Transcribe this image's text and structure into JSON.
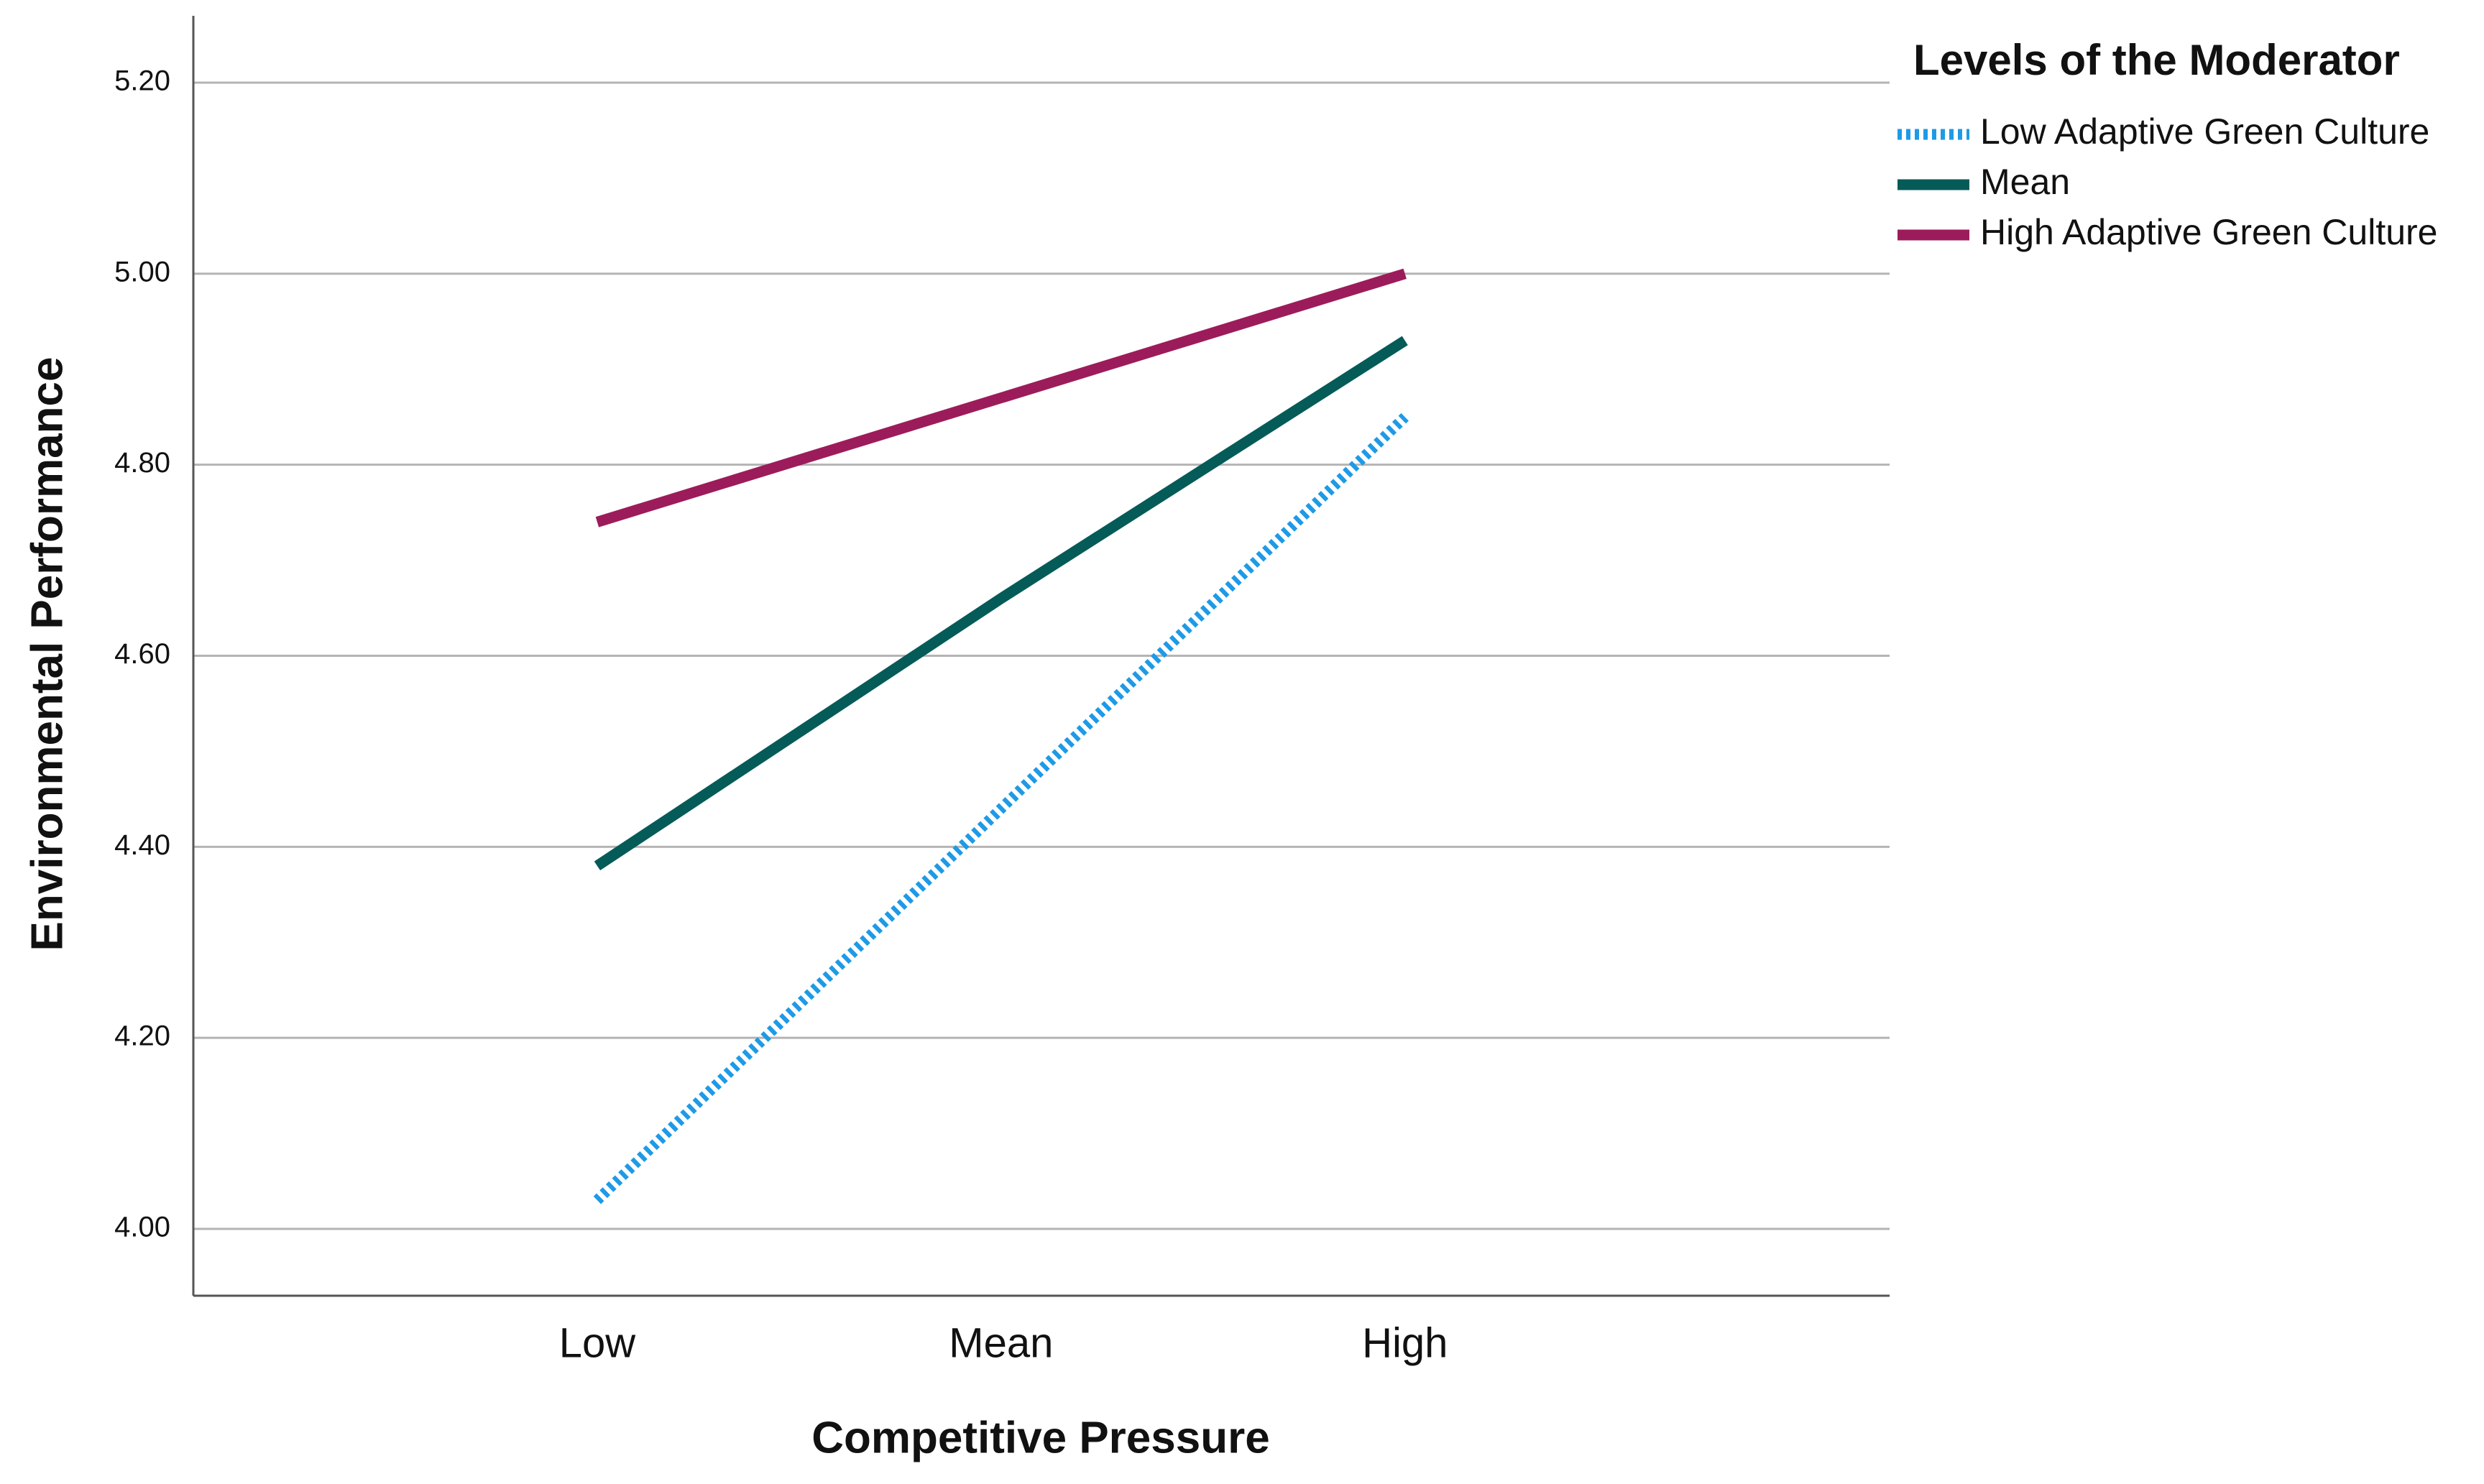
{
  "chart_data": {
    "type": "line",
    "x_label": "Competitive Pressure",
    "y_label": "Environmental Performance",
    "legend_title": "Levels of the Moderator",
    "categories": [
      "Low",
      "Mean",
      "High"
    ],
    "series": [
      {
        "name": "Low Adaptive Green Culture",
        "color": "#1e9ae6",
        "line_style": "dotted",
        "values": [
          4.03,
          4.44,
          4.85
        ]
      },
      {
        "name": "Mean",
        "color": "#045b58",
        "line_style": "solid",
        "values": [
          4.38,
          4.66,
          4.93
        ]
      },
      {
        "name": "High Adaptive Green Culture",
        "color": "#9c1c5b",
        "line_style": "solid",
        "values": [
          4.74,
          4.87,
          5.0
        ]
      }
    ],
    "ylim": [
      3.93,
      5.27
    ],
    "yticks": [
      {
        "value": 4.0,
        "label": "4.00"
      },
      {
        "value": 4.2,
        "label": "4.20"
      },
      {
        "value": 4.4,
        "label": "4.40"
      },
      {
        "value": 4.6,
        "label": "4.60"
      },
      {
        "value": 4.8,
        "label": "4.80"
      },
      {
        "value": 5.0,
        "label": "5.00"
      },
      {
        "value": 5.2,
        "label": "5.20"
      }
    ],
    "grid": true,
    "legend_position": "right"
  }
}
